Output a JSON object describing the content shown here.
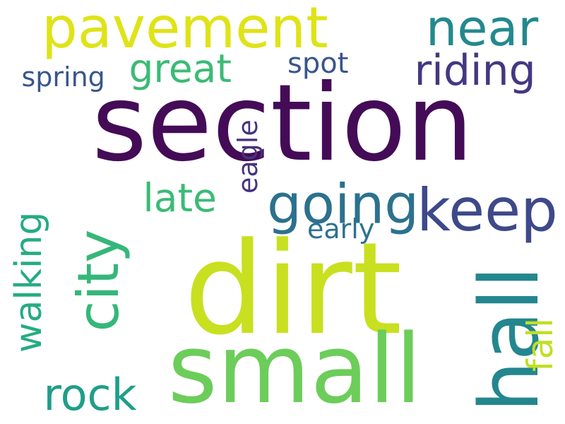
{
  "words": [
    {
      "text": "section",
      "color": "#440b57",
      "rotated": false
    },
    {
      "text": "dirt",
      "color": "#c8e020",
      "rotated": false
    },
    {
      "text": "small",
      "color": "#6ccd5a",
      "rotated": false
    },
    {
      "text": "pavement",
      "color": "#dfe318",
      "rotated": false
    },
    {
      "text": "near",
      "color": "#23898e",
      "rotated": false
    },
    {
      "text": "keep",
      "color": "#3e4989",
      "rotated": false
    },
    {
      "text": "going",
      "color": "#2c718e",
      "rotated": false
    },
    {
      "text": "hall",
      "color": "#24868e",
      "rotated": true
    },
    {
      "text": "city",
      "color": "#35b779",
      "rotated": true
    },
    {
      "text": "riding",
      "color": "#453781",
      "rotated": false
    },
    {
      "text": "great",
      "color": "#3bbb75",
      "rotated": false
    },
    {
      "text": "rock",
      "color": "#1f9e89",
      "rotated": false
    },
    {
      "text": "walking",
      "color": "#25ac82",
      "rotated": true
    },
    {
      "text": "late",
      "color": "#3bbb75",
      "rotated": false
    },
    {
      "text": "fall",
      "color": "#c2df23",
      "rotated": true
    },
    {
      "text": "eagle",
      "color": "#46337e",
      "rotated": true
    },
    {
      "text": "early",
      "color": "#2d718e",
      "rotated": false
    },
    {
      "text": "spot",
      "color": "#39568c",
      "rotated": false
    },
    {
      "text": "spring",
      "color": "#39568c",
      "rotated": false
    }
  ]
}
